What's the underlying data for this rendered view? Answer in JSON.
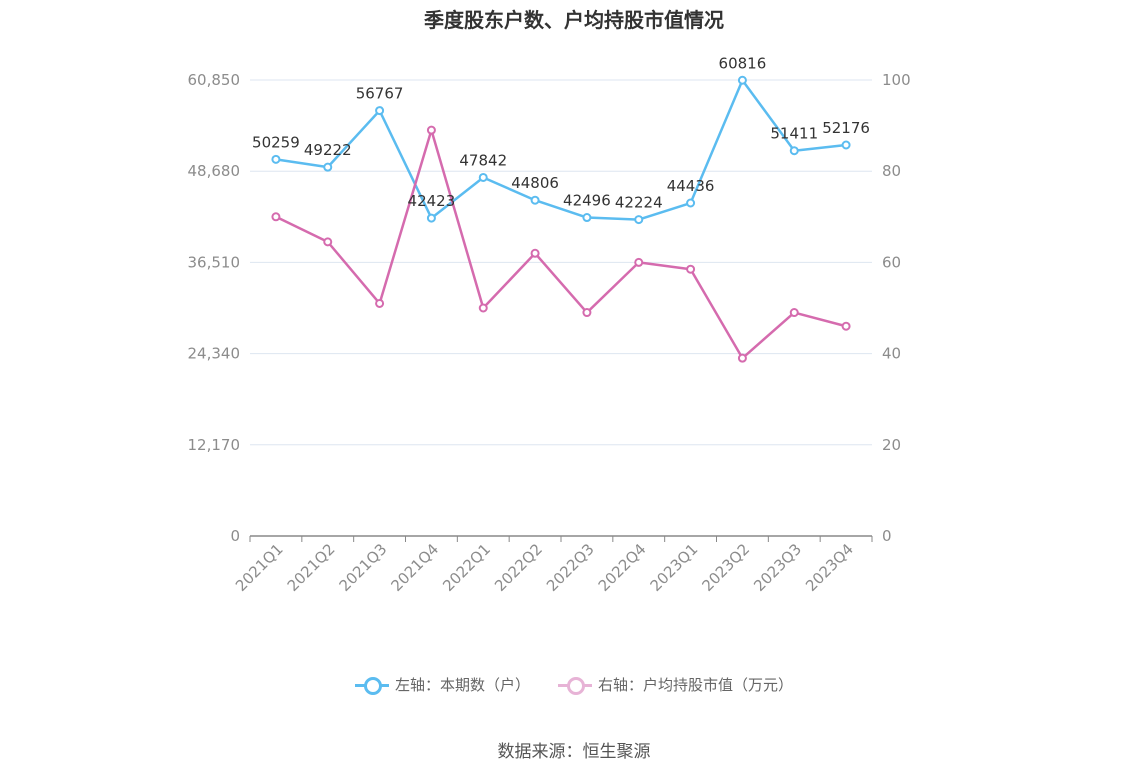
{
  "title": "季度股东户数、户均持股市值情况",
  "source": "数据来源：恒生聚源",
  "legend": {
    "left": "左轴：本期数（户）",
    "right": "右轴：户均持股市值（万元）"
  },
  "colors": {
    "left_series": "#5bbcf0",
    "right_series": "#d56bae",
    "grid": "#dde6f0",
    "axis": "#8c8c8c"
  },
  "chart_data": {
    "type": "line",
    "title": "季度股东户数、户均持股市值情况",
    "categories": [
      "2021Q1",
      "2021Q2",
      "2021Q3",
      "2021Q4",
      "2022Q1",
      "2022Q2",
      "2022Q3",
      "2022Q4",
      "2023Q1",
      "2023Q2",
      "2023Q3",
      "2023Q4"
    ],
    "left_axis": {
      "ticks": [
        "0",
        "12,170",
        "24,340",
        "36,510",
        "48,680",
        "60,850"
      ],
      "ylim": [
        0,
        60850
      ]
    },
    "right_axis": {
      "ticks": [
        "0",
        "20",
        "40",
        "60",
        "80",
        "100"
      ],
      "ylim": [
        0,
        100
      ]
    },
    "grid": true,
    "legend_position": "bottom",
    "series": [
      {
        "name": "左轴：本期数（户）",
        "axis": "left",
        "values": [
          50259,
          49222,
          56767,
          42423,
          47842,
          44806,
          42496,
          42224,
          44436,
          60816,
          51411,
          52176
        ],
        "labels": [
          "50259",
          "49222",
          "56767",
          "42423",
          "47842",
          "44806",
          "42496",
          "42224",
          "44436",
          "60816",
          "51411",
          "52176"
        ]
      },
      {
        "name": "右轴：户均持股市值（万元）",
        "axis": "right",
        "values": [
          70.0,
          64.5,
          51.0,
          89.0,
          50.0,
          62.0,
          49.0,
          60.0,
          58.5,
          39.0,
          49.0,
          46.0
        ]
      }
    ]
  }
}
